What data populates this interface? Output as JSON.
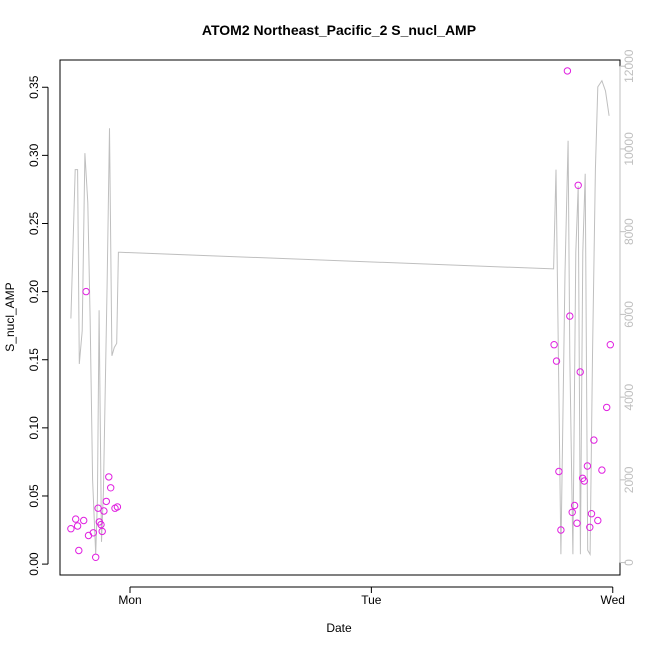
{
  "chart_data": {
    "type": "scatter",
    "title": "ATOM2 Northeast_Pacific_2 S_nucl_AMP",
    "xlabel": "Date",
    "ylabel": "S_nucl_AMP",
    "x_axis": {
      "ticks": [
        {
          "label": "Mon",
          "value": 1.0
        },
        {
          "label": "Tue",
          "value": 2.0
        },
        {
          "label": "Wed",
          "value": 3.0
        }
      ],
      "range": [
        0.71,
        3.03
      ]
    },
    "y_axis": {
      "ticks": [
        "0.00",
        "0.05",
        "0.10",
        "0.15",
        "0.20",
        "0.25",
        "0.30",
        "0.35"
      ],
      "range": [
        -0.008,
        0.37
      ]
    },
    "y2_axis": {
      "ticks": [
        "0",
        "2000",
        "4000",
        "6000",
        "8000",
        "10000",
        "12000"
      ],
      "range": [
        -300,
        12150
      ]
    },
    "grid": false,
    "colors": {
      "points": "#e020e0",
      "line": "#bfbfbf",
      "axis": "#000000",
      "right_axis": "#bfbfbf"
    },
    "series": [
      {
        "kind": "points",
        "axis": "left",
        "points": [
          [
            0.755,
            0.026
          ],
          [
            0.775,
            0.033
          ],
          [
            0.783,
            0.028
          ],
          [
            0.788,
            0.01
          ],
          [
            0.808,
            0.032
          ],
          [
            0.818,
            0.2
          ],
          [
            0.828,
            0.021
          ],
          [
            0.848,
            0.023
          ],
          [
            0.858,
            0.005
          ],
          [
            0.868,
            0.041
          ],
          [
            0.873,
            0.031
          ],
          [
            0.88,
            0.029
          ],
          [
            0.885,
            0.024
          ],
          [
            0.892,
            0.039
          ],
          [
            0.902,
            0.046
          ],
          [
            0.912,
            0.064
          ],
          [
            0.92,
            0.056
          ],
          [
            0.938,
            0.041
          ],
          [
            0.948,
            0.042
          ],
          [
            2.757,
            0.161
          ],
          [
            2.767,
            0.149
          ],
          [
            2.777,
            0.068
          ],
          [
            2.785,
            0.025
          ],
          [
            2.812,
            0.362
          ],
          [
            2.822,
            0.182
          ],
          [
            2.832,
            0.038
          ],
          [
            2.842,
            0.043
          ],
          [
            2.852,
            0.03
          ],
          [
            2.857,
            0.278
          ],
          [
            2.865,
            0.141
          ],
          [
            2.875,
            0.063
          ],
          [
            2.882,
            0.061
          ],
          [
            2.895,
            0.072
          ],
          [
            2.905,
            0.027
          ],
          [
            2.912,
            0.037
          ],
          [
            2.922,
            0.091
          ],
          [
            2.938,
            0.032
          ],
          [
            2.955,
            0.069
          ],
          [
            2.975,
            0.115
          ],
          [
            2.99,
            0.161
          ]
        ]
      },
      {
        "kind": "line",
        "axis": "right",
        "points": [
          [
            0.755,
            5900
          ],
          [
            0.773,
            9500
          ],
          [
            0.783,
            9500
          ],
          [
            0.79,
            4800
          ],
          [
            0.802,
            5600
          ],
          [
            0.813,
            9900
          ],
          [
            0.825,
            8700
          ],
          [
            0.835,
            5800
          ],
          [
            0.845,
            2000
          ],
          [
            0.858,
            200
          ],
          [
            0.865,
            1500
          ],
          [
            0.872,
            6100
          ],
          [
            0.882,
            500
          ],
          [
            0.89,
            1700
          ],
          [
            0.905,
            6700
          ],
          [
            0.915,
            10500
          ],
          [
            0.925,
            5000
          ],
          [
            0.935,
            5200
          ],
          [
            0.945,
            5300
          ],
          [
            0.952,
            7500
          ],
          [
            0.96,
            7500
          ],
          [
            2.755,
            7100
          ],
          [
            2.765,
            9500
          ],
          [
            2.775,
            5000
          ],
          [
            2.785,
            200
          ],
          [
            2.802,
            7000
          ],
          [
            2.815,
            10200
          ],
          [
            2.822,
            5000
          ],
          [
            2.835,
            200
          ],
          [
            2.847,
            7500
          ],
          [
            2.857,
            9100
          ],
          [
            2.866,
            200
          ],
          [
            2.876,
            7500
          ],
          [
            2.886,
            9400
          ],
          [
            2.896,
            300
          ],
          [
            2.906,
            200
          ],
          [
            2.916,
            5000
          ],
          [
            2.928,
            9500
          ],
          [
            2.938,
            11500
          ],
          [
            2.955,
            11650
          ],
          [
            2.97,
            11400
          ],
          [
            2.985,
            10800
          ]
        ]
      }
    ]
  }
}
